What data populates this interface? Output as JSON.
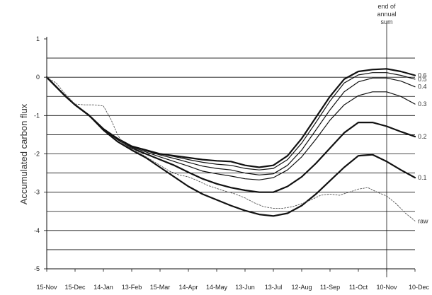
{
  "chart_data": {
    "type": "line",
    "title": "",
    "xlabel": "",
    "ylabel": "Accumulated carbon flux",
    "ylim": [
      -5,
      1
    ],
    "yticks": [
      1,
      0,
      -1,
      -2,
      -3,
      -4,
      -5
    ],
    "grid_y": [
      0.5,
      0,
      -0.5,
      -1,
      -1.5,
      -2,
      -2.5,
      -3,
      -3.5,
      -4,
      -4.5,
      -5
    ],
    "xlim": [
      0,
      390
    ],
    "x_tick_labels": [
      "15-Nov",
      "15-Dec",
      "14-Jan",
      "13-Feb",
      "15-Mar",
      "14-Apr",
      "14-May",
      "13-Jun",
      "13-Jul",
      "12-Aug",
      "11-Sep",
      "11-Oct",
      "10-Nov",
      "10-Dec"
    ],
    "x_tick_positions": [
      0,
      30,
      60,
      90,
      120,
      150,
      180,
      210,
      240,
      270,
      300,
      330,
      360,
      390
    ],
    "annotation": {
      "text_lines": [
        "end of",
        "annual",
        "sum"
      ],
      "x": 360
    },
    "series": [
      {
        "name": "0.6",
        "style": "thick",
        "x": [
          0,
          10,
          20,
          30,
          45,
          60,
          75,
          90,
          105,
          120,
          135,
          150,
          165,
          180,
          195,
          210,
          225,
          240,
          255,
          270,
          285,
          300,
          315,
          330,
          345,
          360,
          375,
          390
        ],
        "y": [
          0,
          -0.25,
          -0.5,
          -0.72,
          -1.0,
          -1.35,
          -1.6,
          -1.8,
          -1.9,
          -2.0,
          -2.05,
          -2.1,
          -2.15,
          -2.18,
          -2.2,
          -2.3,
          -2.35,
          -2.3,
          -2.05,
          -1.6,
          -1.05,
          -0.5,
          -0.05,
          0.15,
          0.2,
          0.22,
          0.15,
          0.05
        ]
      },
      {
        "name": "0.5",
        "style": "thin",
        "x": [
          0,
          10,
          20,
          30,
          45,
          60,
          75,
          90,
          105,
          120,
          135,
          150,
          165,
          180,
          195,
          210,
          225,
          240,
          255,
          270,
          285,
          300,
          315,
          330,
          345,
          360,
          375,
          390
        ],
        "y": [
          0,
          -0.25,
          -0.5,
          -0.72,
          -1.0,
          -1.35,
          -1.6,
          -1.8,
          -1.9,
          -2.0,
          -2.07,
          -2.15,
          -2.22,
          -2.27,
          -2.3,
          -2.38,
          -2.42,
          -2.38,
          -2.15,
          -1.72,
          -1.18,
          -0.62,
          -0.15,
          0.06,
          0.12,
          0.12,
          0.05,
          -0.05
        ]
      },
      {
        "name": "0.4",
        "style": "thin",
        "x": [
          0,
          10,
          20,
          30,
          45,
          60,
          75,
          90,
          105,
          120,
          135,
          150,
          165,
          180,
          195,
          210,
          225,
          240,
          255,
          270,
          285,
          300,
          315,
          330,
          345,
          360,
          375,
          390
        ],
        "y": [
          0,
          -0.25,
          -0.5,
          -0.72,
          -1.0,
          -1.35,
          -1.6,
          -1.8,
          -1.92,
          -2.03,
          -2.12,
          -2.22,
          -2.32,
          -2.38,
          -2.42,
          -2.5,
          -2.55,
          -2.52,
          -2.3,
          -1.9,
          -1.38,
          -0.85,
          -0.38,
          -0.12,
          -0.02,
          -0.02,
          -0.1,
          -0.25
        ]
      },
      {
        "name": "0.3",
        "style": "thin",
        "x": [
          0,
          10,
          20,
          30,
          45,
          60,
          75,
          90,
          105,
          120,
          135,
          150,
          165,
          180,
          195,
          210,
          225,
          240,
          255,
          270,
          285,
          300,
          315,
          330,
          345,
          360,
          375,
          390
        ],
        "y": [
          0,
          -0.25,
          -0.5,
          -0.72,
          -1.0,
          -1.35,
          -1.62,
          -1.82,
          -1.95,
          -2.08,
          -2.2,
          -2.32,
          -2.45,
          -2.52,
          -2.58,
          -2.65,
          -2.68,
          -2.62,
          -2.42,
          -2.08,
          -1.62,
          -1.12,
          -0.72,
          -0.48,
          -0.38,
          -0.38,
          -0.5,
          -0.7
        ]
      },
      {
        "name": "0.2",
        "style": "thick",
        "x": [
          0,
          10,
          20,
          30,
          45,
          60,
          75,
          90,
          105,
          120,
          135,
          150,
          165,
          180,
          195,
          210,
          225,
          240,
          255,
          270,
          285,
          300,
          315,
          330,
          345,
          360,
          375,
          390
        ],
        "y": [
          0,
          -0.25,
          -0.5,
          -0.72,
          -1.0,
          -1.35,
          -1.62,
          -1.85,
          -2.0,
          -2.15,
          -2.3,
          -2.48,
          -2.65,
          -2.78,
          -2.88,
          -2.95,
          -3.0,
          -3.0,
          -2.85,
          -2.6,
          -2.25,
          -1.85,
          -1.45,
          -1.18,
          -1.18,
          -1.28,
          -1.42,
          -1.55
        ]
      },
      {
        "name": "0.1",
        "style": "thick",
        "x": [
          0,
          10,
          20,
          30,
          45,
          60,
          75,
          90,
          105,
          120,
          135,
          150,
          165,
          180,
          195,
          210,
          225,
          240,
          255,
          270,
          285,
          300,
          315,
          330,
          345,
          360,
          375,
          390
        ],
        "y": [
          0,
          -0.25,
          -0.5,
          -0.72,
          -1.0,
          -1.38,
          -1.68,
          -1.9,
          -2.1,
          -2.35,
          -2.6,
          -2.85,
          -3.05,
          -3.2,
          -3.35,
          -3.48,
          -3.58,
          -3.62,
          -3.55,
          -3.35,
          -3.05,
          -2.7,
          -2.35,
          -2.05,
          -2.02,
          -2.2,
          -2.42,
          -2.62
        ]
      },
      {
        "name": "raw",
        "style": "dotted",
        "x": [
          0,
          10,
          20,
          30,
          40,
          50,
          60,
          68,
          75,
          80,
          90,
          100,
          110,
          120,
          130,
          140,
          150,
          160,
          170,
          180,
          190,
          200,
          210,
          220,
          230,
          240,
          250,
          260,
          270,
          280,
          290,
          300,
          310,
          320,
          330,
          340,
          350,
          360,
          370,
          380,
          390
        ],
        "y": [
          0,
          -0.15,
          -0.45,
          -0.7,
          -0.72,
          -0.72,
          -0.75,
          -1.1,
          -1.5,
          -1.7,
          -1.85,
          -2.0,
          -2.15,
          -2.3,
          -2.45,
          -2.55,
          -2.6,
          -2.7,
          -2.82,
          -2.9,
          -2.98,
          -3.05,
          -3.15,
          -3.28,
          -3.38,
          -3.42,
          -3.42,
          -3.38,
          -3.3,
          -3.2,
          -3.08,
          -3.05,
          -3.08,
          -3.0,
          -2.92,
          -2.88,
          -3.0,
          -3.1,
          -3.3,
          -3.55,
          -3.75
        ]
      }
    ]
  }
}
